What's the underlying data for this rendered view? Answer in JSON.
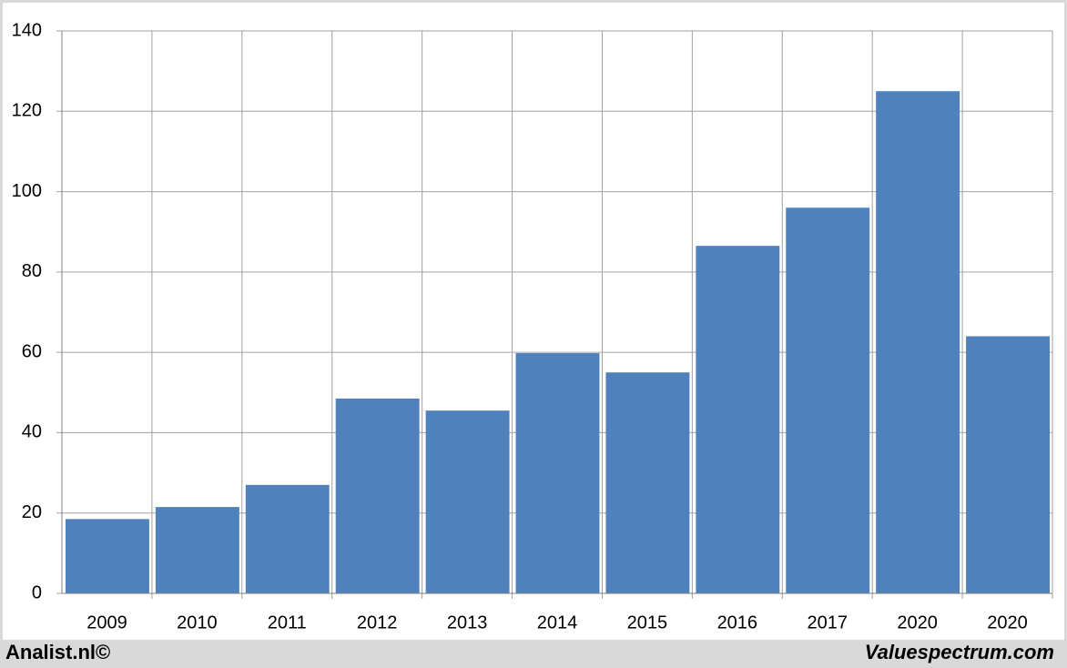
{
  "chart_data": {
    "type": "bar",
    "categories": [
      "2009",
      "2010",
      "2011",
      "2012",
      "2013",
      "2014",
      "2015",
      "2016",
      "2017",
      "2020",
      "2020"
    ],
    "values": [
      18.5,
      21.5,
      27,
      48.5,
      45.5,
      59.8,
      55,
      86.5,
      96,
      125,
      64
    ],
    "color": "#4f81bd",
    "ylim": [
      0,
      140
    ],
    "yticks": [
      0,
      20,
      40,
      60,
      80,
      100,
      120,
      140
    ],
    "grid": true
  },
  "footer": {
    "left": "Analist.nl©",
    "right": "Valuespectrum.com"
  }
}
